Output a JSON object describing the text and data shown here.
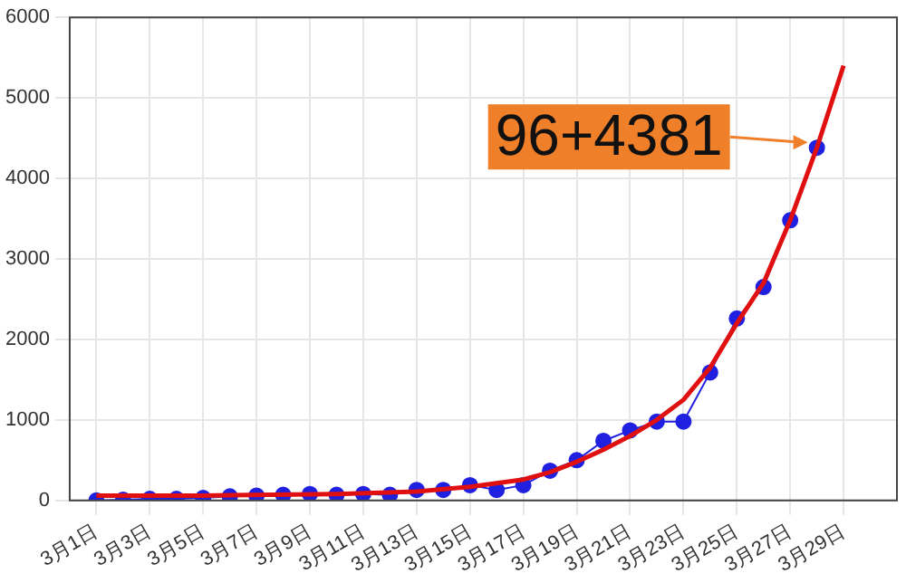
{
  "chart_data": {
    "type": "line",
    "grid": true,
    "legend": false,
    "xlim": [
      "--02-28",
      "--03-31"
    ],
    "xticks": [
      {
        "value": "--03-01",
        "label": "3月1日"
      },
      {
        "value": "--03-03",
        "label": "3月3日"
      },
      {
        "value": "--03-05",
        "label": "3月5日"
      },
      {
        "value": "--03-07",
        "label": "3月7日"
      },
      {
        "value": "--03-09",
        "label": "3月9日"
      },
      {
        "value": "--03-11",
        "label": "3月11日"
      },
      {
        "value": "--03-13",
        "label": "3月13日"
      },
      {
        "value": "--03-15",
        "label": "3月15日"
      },
      {
        "value": "--03-17",
        "label": "3月17日"
      },
      {
        "value": "--03-19",
        "label": "3月19日"
      },
      {
        "value": "--03-21",
        "label": "3月21日"
      },
      {
        "value": "--03-23",
        "label": "3月23日"
      },
      {
        "value": "--03-25",
        "label": "3月25日"
      },
      {
        "value": "--03-27",
        "label": "3月27日"
      },
      {
        "value": "--03-29",
        "label": "3月29日"
      }
    ],
    "ylim": [
      0,
      6000
    ],
    "yticks": [
      0,
      1000,
      2000,
      3000,
      4000,
      5000,
      6000
    ],
    "series": [
      {
        "color": "#2020e0",
        "marker": "circle",
        "line_style": "solid",
        "x": [
          "--03-01",
          "--03-02",
          "--03-03",
          "--03-04",
          "--03-05",
          "--03-06",
          "--03-07",
          "--03-08",
          "--03-09",
          "--03-10",
          "--03-11",
          "--03-12",
          "--03-13",
          "--03-14",
          "--03-15",
          "--03-16",
          "--03-17",
          "--03-18",
          "--03-19",
          "--03-20",
          "--03-21",
          "--03-22",
          "--03-23",
          "--03-24",
          "--03-25",
          "--03-26",
          "--03-27",
          "--03-28"
        ],
        "values": [
          0,
          10,
          20,
          20,
          30,
          50,
          60,
          70,
          80,
          70,
          80,
          70,
          130,
          130,
          190,
          130,
          190,
          370,
          500,
          740,
          870,
          980,
          980,
          1590,
          2260,
          2650,
          3480,
          4381
        ]
      },
      {
        "color": "#e01010",
        "marker": "none",
        "line_style": "solid",
        "x": [
          "--03-01",
          "--03-05",
          "--03-10",
          "--03-13",
          "--03-15",
          "--03-17",
          "--03-18",
          "--03-19",
          "--03-20",
          "--03-21",
          "--03-22",
          "--03-23",
          "--03-24",
          "--03-25",
          "--03-26",
          "--03-27",
          "--03-28",
          "--03-29"
        ],
        "values": [
          60,
          60,
          80,
          110,
          170,
          260,
          350,
          480,
          630,
          800,
          1000,
          1250,
          1650,
          2200,
          2700,
          3480,
          4381,
          5400
        ]
      }
    ],
    "annotations": [
      {
        "text": "96+4381",
        "x": "--03-28",
        "y": 4381
      }
    ]
  }
}
